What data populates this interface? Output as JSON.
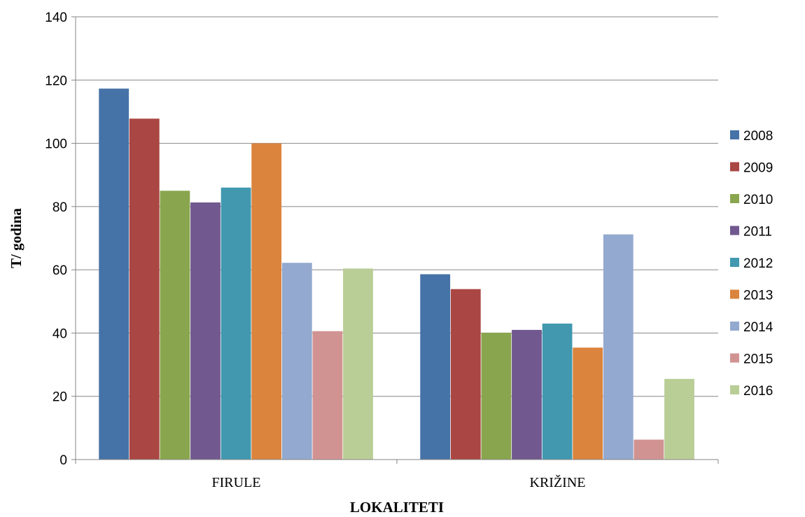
{
  "chart_data": {
    "type": "bar",
    "title": "",
    "xlabel": "LOKALITETI",
    "ylabel": "T/ godina",
    "ylim": [
      0,
      140
    ],
    "yticks": [
      0,
      20,
      40,
      60,
      80,
      100,
      120,
      140
    ],
    "categories": [
      "FIRULE",
      "KRIŽINE"
    ],
    "grid": true,
    "legend_position": "right",
    "series": [
      {
        "name": "2008",
        "color": "#4572A7",
        "values": [
          117.3,
          58.6
        ]
      },
      {
        "name": "2009",
        "color": "#AA4643",
        "values": [
          107.8,
          53.9
        ]
      },
      {
        "name": "2010",
        "color": "#89A54E",
        "values": [
          85.0,
          40.1
        ]
      },
      {
        "name": "2011",
        "color": "#71588F",
        "values": [
          81.3,
          41.0
        ]
      },
      {
        "name": "2012",
        "color": "#4198AF",
        "values": [
          86.0,
          43.0
        ]
      },
      {
        "name": "2013",
        "color": "#DB843D",
        "values": [
          100.0,
          35.4
        ]
      },
      {
        "name": "2014",
        "color": "#93A9CF",
        "values": [
          62.2,
          71.2
        ]
      },
      {
        "name": "2015",
        "color": "#D19392",
        "values": [
          40.6,
          6.3
        ]
      },
      {
        "name": "2016",
        "color": "#B9CD96",
        "values": [
          60.4,
          25.5
        ]
      }
    ]
  }
}
